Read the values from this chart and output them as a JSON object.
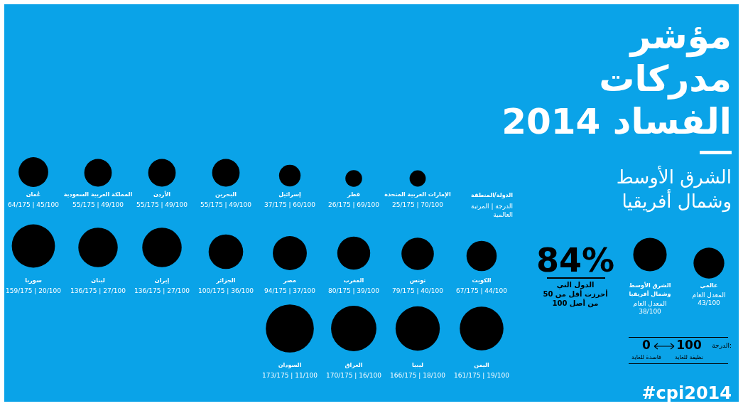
{
  "chart_data": {
    "type": "other",
    "title": "مؤشر\nمدركات\nالفساد 2014",
    "subtitle": "الشرق الأوسط\nوشمال أفريقيا",
    "color": "#000000",
    "categories": [
      "الإمارات العربية المتحدة",
      "قطر",
      "إسرائيل",
      "البحرين",
      "الأردن",
      "المملكة العربية السعودية",
      "عُمان",
      "الكويت",
      "تونس",
      "المغرب",
      "مصر",
      "الجزائر",
      "إيران",
      "لبنان",
      "سوريا",
      "اليمن",
      "ليبيا",
      "العراق",
      "السودان",
      "الشرق الأوسط\nوشمال أفريقيا",
      "عالمي"
    ],
    "values": [
      70,
      69,
      60,
      49,
      49,
      49,
      45,
      44,
      40,
      39,
      37,
      36,
      27,
      27,
      20,
      19,
      18,
      16,
      11,
      38,
      43
    ],
    "value_labels": [
      "25/175 | 70/100",
      "26/175 | 69/100",
      "37/175 | 60/100",
      "55/175 | 49/100",
      "55/175 | 49/100",
      "55/175 | 49/100",
      "64/175 | 45/100",
      "67/175 | 44/100",
      "79/175 | 40/100",
      "80/175 | 39/100",
      "94/175 | 37/100",
      "100/175 | 36/100",
      "136/175 | 27/100",
      "136/175 | 27/100",
      "159/175 | 20/100",
      "161/175 | 19/100",
      "166/175 | 18/100",
      "170/175 | 16/100",
      "173/175 | 11/100",
      "38/100",
      "43/100"
    ],
    "annotations": [
      "الدولة/المنطقة",
      "الدرجة | المرتبة\nالعالمية",
      "84%",
      "الدول التي\nأحرزت أقل من 50\nمن أصل 100",
      "الدرجة:",
      "100",
      "نظيفة للغاية",
      "0",
      "فاسدة للغاية",
      "#cpi2014",
      "المعدل العام",
      "المعدل العام"
    ]
  }
}
